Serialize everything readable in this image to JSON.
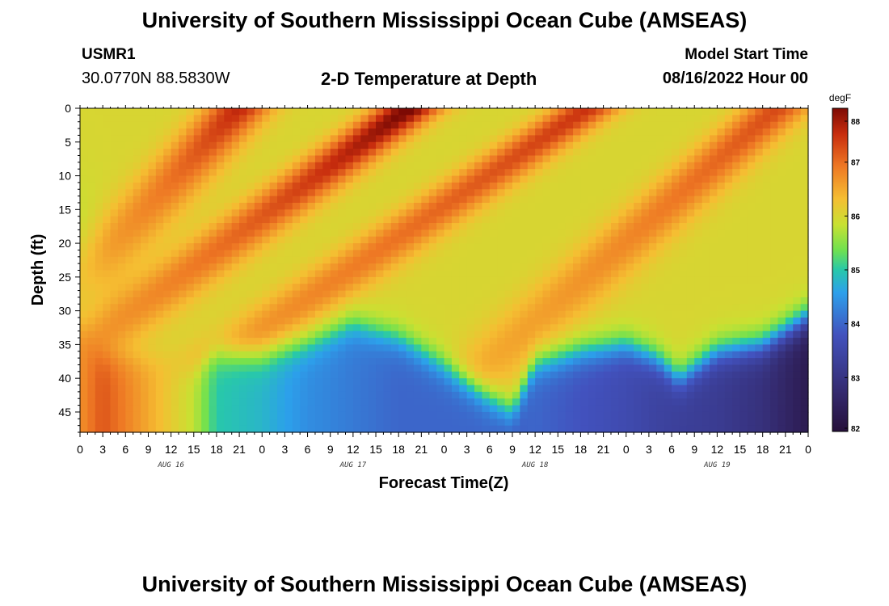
{
  "header": {
    "title": "University of Southern Mississippi Ocean Cube (AMSEAS)",
    "station_id": "USMR1",
    "coordinates": "30.0770N  88.5830W",
    "subtitle": "2-D Temperature at Depth",
    "model_start_label": "Model Start Time",
    "model_start_value": "08/16/2022 Hour 00"
  },
  "footer": {
    "title": "University of Southern Mississippi Ocean Cube (AMSEAS)"
  },
  "chart_data": {
    "type": "heatmap",
    "title": "2-D Temperature at Depth",
    "xlabel": "Forecast Time(Z)",
    "ylabel": "Depth (ft)",
    "x_unit": "hours since 08/16/2022 00Z",
    "x_range": [
      0,
      96
    ],
    "y_range": [
      0,
      48
    ],
    "x_tick_values": [
      0,
      3,
      6,
      9,
      12,
      15,
      18,
      21,
      24,
      27,
      30,
      33,
      36,
      39,
      42,
      45,
      48,
      51,
      54,
      57,
      60,
      63,
      66,
      69,
      72,
      75,
      78,
      81,
      84,
      87,
      90,
      93,
      96
    ],
    "x_tick_labels": [
      "0",
      "3",
      "6",
      "9",
      "12",
      "15",
      "18",
      "21",
      "0",
      "3",
      "6",
      "9",
      "12",
      "15",
      "18",
      "21",
      "0",
      "3",
      "6",
      "9",
      "12",
      "15",
      "18",
      "21",
      "0",
      "3",
      "6",
      "9",
      "12",
      "15",
      "18",
      "21",
      "0"
    ],
    "day_labels": [
      {
        "label": "AUG 16",
        "hour": 12
      },
      {
        "label": "AUG 17",
        "hour": 36
      },
      {
        "label": "AUG 18",
        "hour": 60
      },
      {
        "label": "AUG 19",
        "hour": 84
      }
    ],
    "y_ticks": [
      0,
      5,
      10,
      15,
      20,
      25,
      30,
      35,
      40,
      45
    ],
    "colorbar": {
      "unit": "degF",
      "min": 82,
      "max": 88,
      "ticks": [
        82,
        83,
        84,
        85,
        86,
        87,
        88
      ]
    },
    "field": {
      "deep_layer": [
        {
          "hour": 0,
          "depth": 34,
          "temp": 86.7
        },
        {
          "hour": 3,
          "depth": 36,
          "temp": 87.2
        },
        {
          "hour": 9,
          "depth": 37,
          "temp": 86.5
        },
        {
          "hour": 15,
          "depth": 38,
          "temp": 85.8
        },
        {
          "hour": 18,
          "depth": 36,
          "temp": 85.0
        },
        {
          "hour": 24,
          "depth": 37,
          "temp": 84.8
        },
        {
          "hour": 30,
          "depth": 35,
          "temp": 84.4
        },
        {
          "hour": 36,
          "depth": 32,
          "temp": 84.2
        },
        {
          "hour": 42,
          "depth": 34,
          "temp": 84.0
        },
        {
          "hour": 48,
          "depth": 38,
          "temp": 84.0
        },
        {
          "hour": 54,
          "depth": 43,
          "temp": 84.0
        },
        {
          "hour": 57,
          "depth": 45,
          "temp": 83.9
        },
        {
          "hour": 60,
          "depth": 38,
          "temp": 84.0
        },
        {
          "hour": 66,
          "depth": 36,
          "temp": 83.8
        },
        {
          "hour": 72,
          "depth": 35,
          "temp": 83.6
        },
        {
          "hour": 76,
          "depth": 37,
          "temp": 83.4
        },
        {
          "hour": 79,
          "depth": 40,
          "temp": 83.3
        },
        {
          "hour": 84,
          "depth": 36,
          "temp": 83.2
        },
        {
          "hour": 90,
          "depth": 35,
          "temp": 82.9
        },
        {
          "hour": 96,
          "depth": 31,
          "temp": 82.3
        }
      ],
      "warm_streaks": [
        {
          "hour_surface": 21,
          "slope_h_per_ft": -0.08,
          "peak_temp": 87.6,
          "depth_decay_ft": 22
        },
        {
          "hour_surface": 43.5,
          "slope_h_per_ft": -0.12,
          "peak_temp": 88.1,
          "depth_decay_ft": 28
        },
        {
          "hour_surface": 67,
          "slope_h_per_ft": -0.13,
          "peak_temp": 87.5,
          "depth_decay_ft": 45
        },
        {
          "hour_surface": 92,
          "slope_h_per_ft": -0.1,
          "peak_temp": 87.3,
          "depth_decay_ft": 40
        }
      ],
      "background_temp": 86.0
    }
  }
}
